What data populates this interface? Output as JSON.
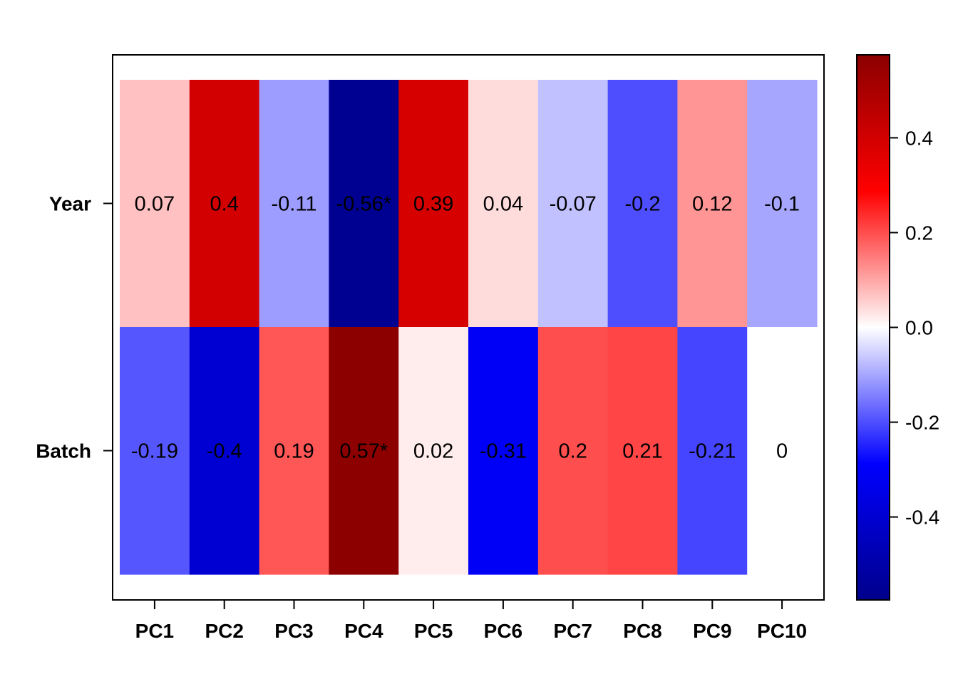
{
  "chart_data": {
    "type": "heatmap",
    "title": "",
    "xlabel": "",
    "ylabel": "",
    "columns": [
      "PC1",
      "PC2",
      "PC3",
      "PC4",
      "PC5",
      "PC6",
      "PC7",
      "PC8",
      "PC9",
      "PC10"
    ],
    "rows": [
      "Year",
      "Batch"
    ],
    "values": [
      [
        0.07,
        0.4,
        -0.11,
        -0.56,
        0.39,
        0.04,
        -0.07,
        -0.2,
        0.12,
        -0.1
      ],
      [
        -0.19,
        -0.4,
        0.19,
        0.57,
        0.02,
        -0.31,
        0.2,
        0.21,
        -0.21,
        0
      ]
    ],
    "cell_labels": [
      [
        "0.07",
        "0.4",
        "-0.11",
        "-0.56*",
        "0.39",
        "0.04",
        "-0.07",
        "-0.2",
        "0.12",
        "-0.1"
      ],
      [
        "-0.19",
        "-0.4",
        "0.19",
        "0.57*",
        "0.02",
        "-0.31",
        "0.2",
        "0.21",
        "-0.21",
        "0"
      ]
    ],
    "colorbar": {
      "range": [
        -0.575,
        0.575
      ],
      "tick_values": [
        0.4,
        0.2,
        0.0,
        -0.2,
        -0.4
      ],
      "tick_labels": [
        "0.4",
        "0.2",
        "0.0",
        "-0.2",
        "-0.4"
      ],
      "colors": [
        "#00008b",
        "#0000ff",
        "#ffffff",
        "#ff0000",
        "#8b0000"
      ],
      "placement": "right"
    },
    "grid": false
  }
}
